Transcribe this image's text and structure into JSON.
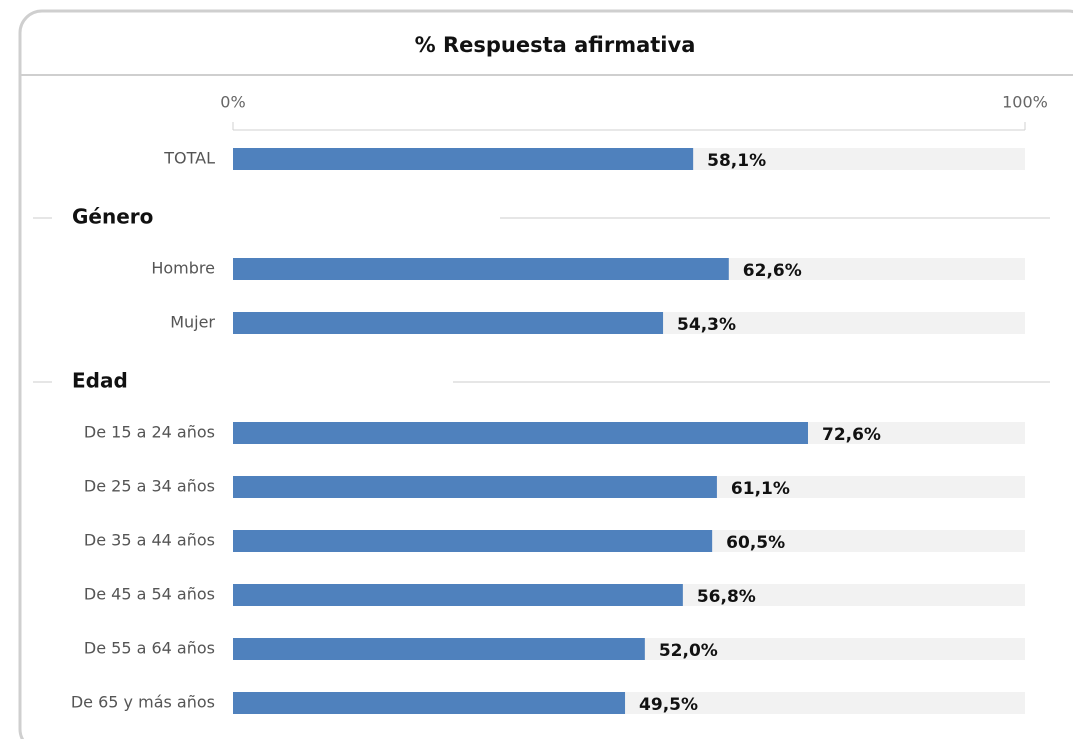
{
  "chart_data": {
    "type": "bar",
    "title": "% Respuesta afirmativa",
    "xlim": [
      0,
      100
    ],
    "xticks": [
      {
        "value": 0,
        "label": "0%"
      },
      {
        "value": 100,
        "label": "100%"
      }
    ],
    "color": "#4f81bd",
    "track_color": "#f2f2f2",
    "sections": [
      {
        "categories": [
          "TOTAL"
        ],
        "values": [
          58.1
        ],
        "value_labels": [
          "58,1%"
        ]
      },
      {
        "name": "Género",
        "categories": [
          "Hombre",
          "Mujer"
        ],
        "values": [
          62.6,
          54.3
        ],
        "value_labels": [
          "62,6%",
          "54,3%"
        ]
      },
      {
        "name": "Edad",
        "categories": [
          "De 15 a 24 años",
          "De 25 a 34 años",
          "De 35 a 44 años",
          "De 45 a 54 años",
          "De 55 a 64 años",
          "De 65 y más años"
        ],
        "values": [
          72.6,
          61.1,
          60.5,
          56.8,
          52.0,
          49.5
        ],
        "value_labels": [
          "72,6%",
          "61,1%",
          "60,5%",
          "56,8%",
          "52,0%",
          "49,5%"
        ]
      }
    ]
  }
}
